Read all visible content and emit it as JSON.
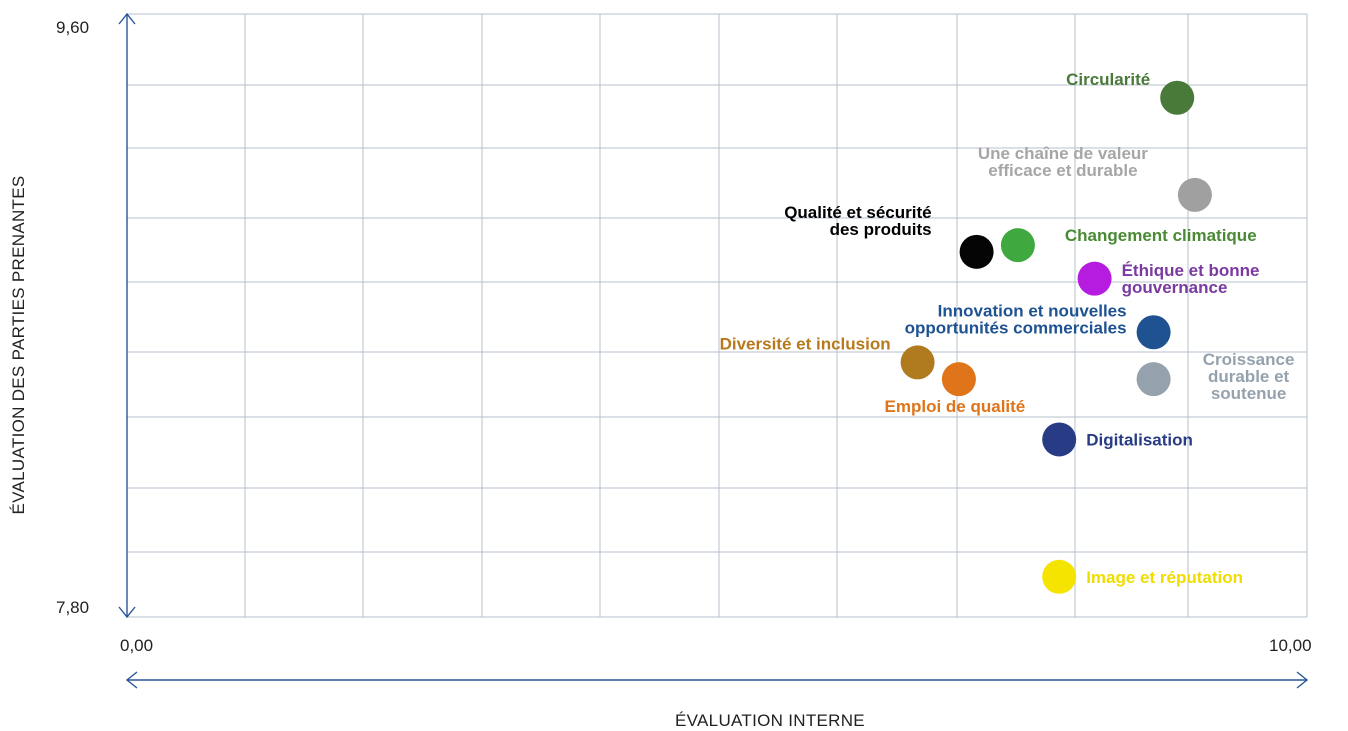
{
  "chart_data": {
    "type": "scatter",
    "xlabel": "ÉVALUATION INTERNE",
    "ylabel": "ÉVALUATION DES PARTIES PRENANTES",
    "xlim": [
      0,
      10
    ],
    "ylim": [
      7.8,
      9.6
    ],
    "x_tick_labels": [
      "0,00",
      "10,00"
    ],
    "y_tick_labels": [
      "9,60",
      "7,80"
    ],
    "grid": true,
    "axis_color": "#2a5599",
    "grid_color": "#b4c0cc",
    "points": [
      {
        "label_lines": [
          "Circularité"
        ],
        "x": 8.9,
        "y": 9.35,
        "color": "#4a7a3a",
        "label_color": "#4a7a3a",
        "label_anchor": "end",
        "label_pos": "left"
      },
      {
        "label_lines": [
          "Une chaîne de valeur",
          "efficace et durable"
        ],
        "x": 9.05,
        "y": 9.06,
        "color": "#a0a0a0",
        "label_color": "#a6a6a6",
        "label_anchor": "middle",
        "label_pos": "above-left"
      },
      {
        "label_lines": [
          "Qualité et sécurité",
          "des produits"
        ],
        "x": 7.2,
        "y": 8.89,
        "color": "#050505",
        "label_color": "#000000",
        "label_anchor": "end",
        "label_pos": "above-left"
      },
      {
        "label_lines": [
          "Changement climatique"
        ],
        "x": 7.55,
        "y": 8.91,
        "color": "#3fa83f",
        "label_color": "#4a8a34",
        "label_anchor": "start",
        "label_pos": "right-above"
      },
      {
        "label_lines": [
          "Éthique et bonne",
          "gouvernance"
        ],
        "x": 8.2,
        "y": 8.81,
        "color": "#b51ce0",
        "label_color": "#7a3aa0",
        "label_anchor": "start",
        "label_pos": "right"
      },
      {
        "label_lines": [
          "Innovation et nouvelles",
          "opportunités commerciales"
        ],
        "x": 8.7,
        "y": 8.65,
        "color": "#1e5291",
        "label_color": "#1e5291",
        "label_anchor": "end",
        "label_pos": "left"
      },
      {
        "label_lines": [
          "Croissance",
          "durable et",
          "soutenue"
        ],
        "x": 8.7,
        "y": 8.51,
        "color": "#95a2ad",
        "label_color": "#95a2ad",
        "label_anchor": "middle",
        "label_pos": "right"
      },
      {
        "label_lines": [
          "Diversité et inclusion"
        ],
        "x": 6.7,
        "y": 8.56,
        "color": "#b07a1e",
        "label_color": "#b8781c",
        "label_anchor": "end",
        "label_pos": "left"
      },
      {
        "label_lines": [
          "Emploi de qualité"
        ],
        "x": 7.05,
        "y": 8.51,
        "color": "#e0741a",
        "label_color": "#e0741a",
        "label_anchor": "middle",
        "label_pos": "below"
      },
      {
        "label_lines": [
          "Digitalisation"
        ],
        "x": 7.9,
        "y": 8.33,
        "color": "#283c86",
        "label_color": "#283c86",
        "label_anchor": "start",
        "label_pos": "right"
      },
      {
        "label_lines": [
          "Image et réputation"
        ],
        "x": 7.9,
        "y": 7.92,
        "color": "#f5e400",
        "label_color": "#f0dd00",
        "label_anchor": "start",
        "label_pos": "right"
      }
    ]
  }
}
